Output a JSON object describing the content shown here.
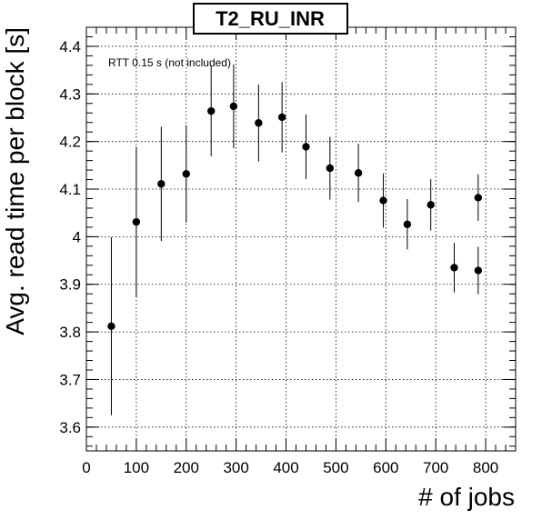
{
  "chart_data": {
    "type": "scatter",
    "title": "T2_RU_INR",
    "xlabel": "# of jobs",
    "ylabel": "Avg. read time per block [s]",
    "annotation": "RTT 0.15 s (not included)",
    "xlim": [
      0,
      860
    ],
    "ylim": [
      3.55,
      4.44
    ],
    "xticks": [
      0,
      100,
      200,
      300,
      400,
      500,
      600,
      700,
      800
    ],
    "xtick_labels": [
      "0",
      "100",
      "200",
      "300",
      "400",
      "500",
      "600",
      "700",
      "800"
    ],
    "yticks": [
      3.6,
      3.7,
      3.8,
      3.9,
      4.0,
      4.1,
      4.2,
      4.3,
      4.4
    ],
    "ytick_labels": [
      "3.6",
      "3.7",
      "3.8",
      "3.9",
      "4",
      "4.1",
      "4.2",
      "4.3",
      "4.4"
    ],
    "grid": true,
    "points": [
      {
        "x": 50,
        "y": 3.812,
        "err": 0.187
      },
      {
        "x": 100,
        "y": 4.031,
        "err": 0.158
      },
      {
        "x": 150,
        "y": 4.111,
        "err": 0.12
      },
      {
        "x": 200,
        "y": 4.132,
        "err": 0.102
      },
      {
        "x": 250,
        "y": 4.264,
        "err": 0.095
      },
      {
        "x": 295,
        "y": 4.274,
        "err": 0.088
      },
      {
        "x": 345,
        "y": 4.239,
        "err": 0.081
      },
      {
        "x": 392,
        "y": 4.251,
        "err": 0.074
      },
      {
        "x": 440,
        "y": 4.189,
        "err": 0.068
      },
      {
        "x": 488,
        "y": 4.144,
        "err": 0.066
      },
      {
        "x": 545,
        "y": 4.134,
        "err": 0.061
      },
      {
        "x": 595,
        "y": 4.076,
        "err": 0.057
      },
      {
        "x": 643,
        "y": 4.026,
        "err": 0.053
      },
      {
        "x": 690,
        "y": 4.067,
        "err": 0.054
      },
      {
        "x": 737,
        "y": 3.935,
        "err": 0.052
      },
      {
        "x": 785,
        "y": 3.929,
        "err": 0.05
      },
      {
        "x": 785,
        "y": 4.082,
        "err": 0.049
      }
    ]
  }
}
